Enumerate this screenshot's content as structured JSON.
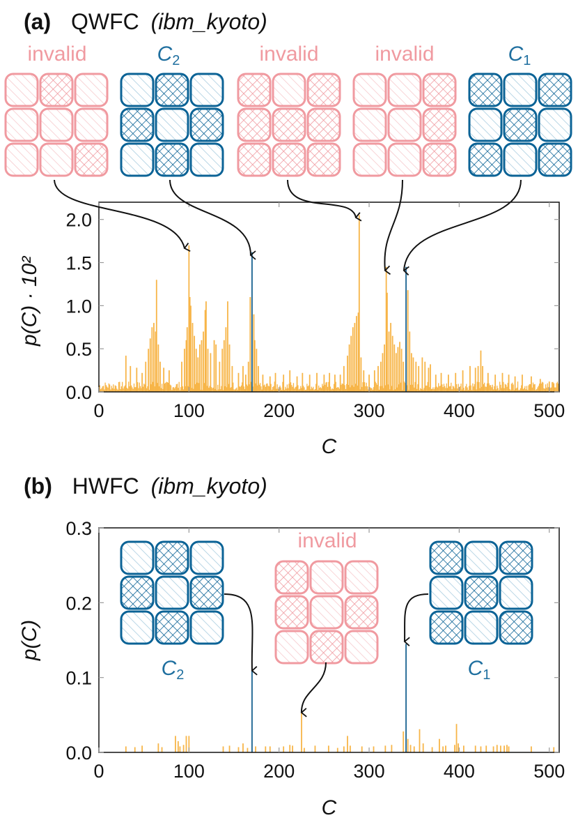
{
  "colors": {
    "invalid": "#f09aa0",
    "invalid_light": "#f6c9cc",
    "valid": "#0b6396",
    "valid_light": "#a9cde0",
    "bar": "#f7b548",
    "highlight": "#2a6e99",
    "axis": "#111111",
    "grid": "#999999"
  },
  "panels": {
    "a": {
      "letter": "(a)",
      "title": "QWFC",
      "device": "(ibm_kyoto)"
    },
    "b": {
      "letter": "(b)",
      "title": "HWFC",
      "device": "(ibm_kyoto)"
    }
  },
  "labels": {
    "invalid": "invalid",
    "c2": "C",
    "c2_sub": "2",
    "c1": "C",
    "c1_sub": "1"
  },
  "icons": [
    "hatch-diagonal-tile",
    "hatch-cross-tile",
    "arrow-icon"
  ],
  "chart_data": [
    {
      "type": "bar",
      "panel": "a",
      "xlabel": "C",
      "ylabel": "p(C) · 10²",
      "xlim": [
        0,
        511
      ],
      "ylim": [
        0,
        2.2
      ],
      "xticks": [
        0,
        100,
        200,
        300,
        400,
        500
      ],
      "yticks": [
        "0.0",
        "0.5",
        "1.0",
        "1.5",
        "2.0"
      ],
      "grid": "ticks",
      "highlight": [
        170,
        341
      ],
      "background_noise": [
        0.02,
        0.12
      ],
      "bars": [
        [
          30,
          0.42
        ],
        [
          35,
          0.3
        ],
        [
          42,
          0.28
        ],
        [
          48,
          0.22
        ],
        [
          52,
          0.35
        ],
        [
          55,
          0.5
        ],
        [
          57,
          0.62
        ],
        [
          59,
          0.75
        ],
        [
          61,
          0.8
        ],
        [
          63,
          0.7
        ],
        [
          64,
          1.3
        ],
        [
          66,
          0.55
        ],
        [
          68,
          0.35
        ],
        [
          72,
          0.28
        ],
        [
          78,
          0.25
        ],
        [
          92,
          0.35
        ],
        [
          95,
          0.5
        ],
        [
          97,
          0.6
        ],
        [
          98,
          0.75
        ],
        [
          100,
          1.7
        ],
        [
          101,
          1.1
        ],
        [
          102,
          1.0
        ],
        [
          104,
          0.8
        ],
        [
          106,
          0.65
        ],
        [
          108,
          0.5
        ],
        [
          110,
          0.4
        ],
        [
          112,
          0.55
        ],
        [
          114,
          0.6
        ],
        [
          116,
          0.7
        ],
        [
          118,
          0.95
        ],
        [
          119,
          1.05
        ],
        [
          121,
          0.5
        ],
        [
          124,
          0.45
        ],
        [
          128,
          0.6
        ],
        [
          130,
          0.55
        ],
        [
          134,
          0.35
        ],
        [
          137,
          0.5
        ],
        [
          139,
          0.6
        ],
        [
          141,
          0.75
        ],
        [
          143,
          1.05
        ],
        [
          145,
          0.55
        ],
        [
          148,
          0.3
        ],
        [
          155,
          0.22
        ],
        [
          160,
          0.3
        ],
        [
          163,
          0.2
        ],
        [
          166,
          0.35
        ],
        [
          168,
          1.1
        ],
        [
          170,
          1.62
        ],
        [
          172,
          0.9
        ],
        [
          173,
          0.6
        ],
        [
          175,
          0.5
        ],
        [
          177,
          0.3
        ],
        [
          182,
          0.2
        ],
        [
          190,
          0.18
        ],
        [
          196,
          0.22
        ],
        [
          205,
          0.2
        ],
        [
          212,
          0.25
        ],
        [
          220,
          0.18
        ],
        [
          226,
          0.22
        ],
        [
          234,
          0.2
        ],
        [
          242,
          0.22
        ],
        [
          250,
          0.2
        ],
        [
          256,
          0.22
        ],
        [
          262,
          0.2
        ],
        [
          268,
          0.2
        ],
        [
          272,
          0.3
        ],
        [
          276,
          0.42
        ],
        [
          278,
          0.55
        ],
        [
          280,
          0.65
        ],
        [
          282,
          0.75
        ],
        [
          284,
          0.8
        ],
        [
          286,
          0.88
        ],
        [
          288,
          0.92
        ],
        [
          289,
          2.05
        ],
        [
          291,
          0.4
        ],
        [
          294,
          0.25
        ],
        [
          300,
          0.2
        ],
        [
          306,
          0.25
        ],
        [
          310,
          0.3
        ],
        [
          313,
          0.35
        ],
        [
          315,
          0.45
        ],
        [
          317,
          0.55
        ],
        [
          319,
          1.45
        ],
        [
          320,
          1.15
        ],
        [
          322,
          0.7
        ],
        [
          324,
          0.8
        ],
        [
          326,
          0.65
        ],
        [
          328,
          0.55
        ],
        [
          330,
          0.45
        ],
        [
          332,
          0.52
        ],
        [
          334,
          0.58
        ],
        [
          336,
          0.5
        ],
        [
          338,
          0.35
        ],
        [
          341,
          1.45
        ],
        [
          343,
          1.18
        ],
        [
          345,
          0.7
        ],
        [
          347,
          0.45
        ],
        [
          349,
          0.4
        ],
        [
          352,
          0.35
        ],
        [
          355,
          0.3
        ],
        [
          359,
          0.4
        ],
        [
          362,
          0.35
        ],
        [
          366,
          0.28
        ],
        [
          368,
          0.32
        ],
        [
          374,
          0.2
        ],
        [
          380,
          0.22
        ],
        [
          388,
          0.2
        ],
        [
          396,
          0.22
        ],
        [
          404,
          0.25
        ],
        [
          412,
          0.3
        ],
        [
          418,
          0.28
        ],
        [
          421,
          0.3
        ],
        [
          424,
          0.48
        ],
        [
          426,
          0.3
        ],
        [
          432,
          0.22
        ],
        [
          440,
          0.2
        ],
        [
          448,
          0.22
        ],
        [
          455,
          0.2
        ],
        [
          462,
          0.18
        ],
        [
          470,
          0.2
        ],
        [
          480,
          0.18
        ],
        [
          490,
          0.15
        ],
        [
          500,
          0.12
        ],
        [
          505,
          0.1
        ]
      ]
    },
    {
      "type": "bar",
      "panel": "b",
      "xlabel": "C",
      "ylabel": "p(C)",
      "xlim": [
        0,
        511
      ],
      "ylim": [
        0,
        0.3
      ],
      "xticks": [
        0,
        100,
        200,
        300,
        400,
        500
      ],
      "yticks": [
        "0.0",
        "0.1",
        "0.2",
        "0.3"
      ],
      "grid": "ticks",
      "highlight": [
        170,
        341
      ],
      "bars": [
        [
          30,
          0.008
        ],
        [
          40,
          0.007
        ],
        [
          48,
          0.009
        ],
        [
          66,
          0.012
        ],
        [
          70,
          0.007
        ],
        [
          85,
          0.022
        ],
        [
          88,
          0.015
        ],
        [
          90,
          0.008
        ],
        [
          94,
          0.01
        ],
        [
          97,
          0.022
        ],
        [
          100,
          0.022
        ],
        [
          138,
          0.008
        ],
        [
          145,
          0.009
        ],
        [
          155,
          0.007
        ],
        [
          160,
          0.012
        ],
        [
          165,
          0.006
        ],
        [
          170,
          0.109
        ],
        [
          174,
          0.008
        ],
        [
          185,
          0.008
        ],
        [
          190,
          0.008
        ],
        [
          205,
          0.008
        ],
        [
          212,
          0.01
        ],
        [
          215,
          0.009
        ],
        [
          225,
          0.055
        ],
        [
          228,
          0.006
        ],
        [
          240,
          0.009
        ],
        [
          255,
          0.009
        ],
        [
          265,
          0.006
        ],
        [
          272,
          0.008
        ],
        [
          276,
          0.022
        ],
        [
          279,
          0.009
        ],
        [
          292,
          0.008
        ],
        [
          305,
          0.008
        ],
        [
          318,
          0.009
        ],
        [
          325,
          0.01
        ],
        [
          338,
          0.028
        ],
        [
          341,
          0.145
        ],
        [
          343,
          0.018
        ],
        [
          346,
          0.01
        ],
        [
          350,
          0.008
        ],
        [
          356,
          0.031
        ],
        [
          360,
          0.012
        ],
        [
          370,
          0.007
        ],
        [
          378,
          0.018
        ],
        [
          382,
          0.008
        ],
        [
          385,
          0.009
        ],
        [
          395,
          0.01
        ],
        [
          397,
          0.038
        ],
        [
          399,
          0.012
        ],
        [
          405,
          0.009
        ],
        [
          418,
          0.009
        ],
        [
          424,
          0.008
        ],
        [
          430,
          0.009
        ],
        [
          438,
          0.008
        ],
        [
          442,
          0.01
        ],
        [
          446,
          0.009
        ],
        [
          450,
          0.009
        ],
        [
          453,
          0.01
        ],
        [
          455,
          0.008
        ],
        [
          480,
          0.008
        ],
        [
          505,
          0.007
        ]
      ]
    }
  ]
}
